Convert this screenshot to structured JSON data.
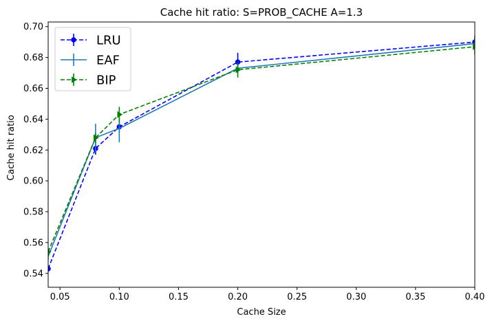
{
  "chart_data": {
    "type": "line",
    "title": "Cache hit ratio: S=PROB_CACHE A=1.3",
    "xlabel": "Cache Size",
    "ylabel": "Cache hit ratio",
    "xlim": [
      0.04,
      0.4
    ],
    "ylim": [
      0.531,
      0.703
    ],
    "xticks": [
      0.05,
      0.1,
      0.15,
      0.2,
      0.25,
      0.3,
      0.35,
      0.4
    ],
    "xtick_labels": [
      "0.05",
      "0.10",
      "0.15",
      "0.20",
      "0.25",
      "0.30",
      "0.35",
      "0.40"
    ],
    "yticks": [
      0.54,
      0.56,
      0.58,
      0.6,
      0.62,
      0.64,
      0.66,
      0.68,
      0.7
    ],
    "ytick_labels": [
      "0.54",
      "0.56",
      "0.58",
      "0.60",
      "0.62",
      "0.64",
      "0.66",
      "0.68",
      "0.70"
    ],
    "grid": false,
    "legend_position": "upper-left",
    "x": [
      0.04,
      0.08,
      0.1,
      0.2,
      0.4
    ],
    "series": [
      {
        "name": "LRU",
        "color": "#0000ff",
        "dash": "dashed",
        "marker": "circle",
        "values": [
          0.543,
          0.621,
          0.635,
          0.677,
          0.69
        ],
        "errors": [
          0.002,
          0.004,
          0.003,
          0.006,
          0.004
        ]
      },
      {
        "name": "EAF",
        "color": "#1f77b4",
        "dash": "solid",
        "marker": "none",
        "values": [
          0.551,
          0.628,
          0.634,
          0.673,
          0.689
        ],
        "errors": [
          0.002,
          0.009,
          0.009,
          0.003,
          0.003
        ]
      },
      {
        "name": "BIP",
        "color": "#008000",
        "dash": "dashed",
        "marker": "triangle-right",
        "values": [
          0.554,
          0.628,
          0.643,
          0.672,
          0.687
        ],
        "errors": [
          0.002,
          0.003,
          0.005,
          0.005,
          0.005
        ]
      }
    ]
  }
}
